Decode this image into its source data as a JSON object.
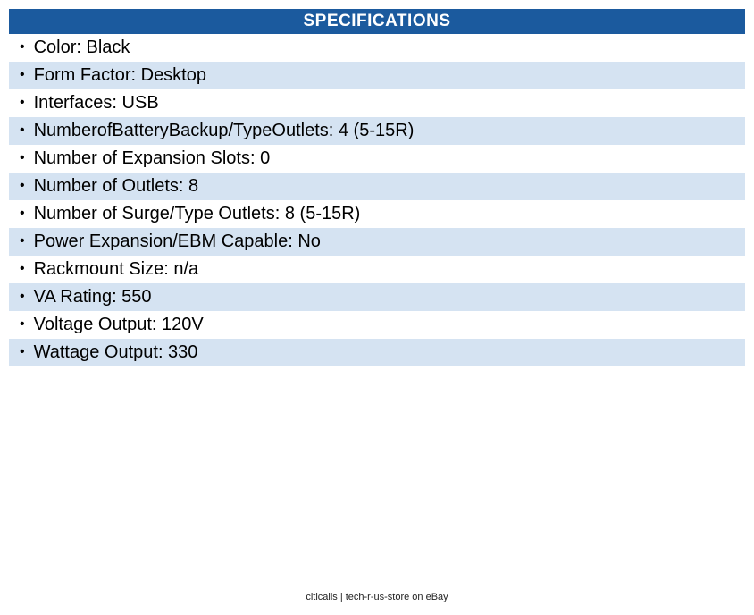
{
  "colors": {
    "header_bg": "#1b5a9e",
    "row_alt_bg": "#d5e3f2",
    "header_text": "#ffffff",
    "row_text": "#000000"
  },
  "table": {
    "title": "SPECIFICATIONS",
    "bullet_glyph": "•",
    "rows": [
      "Color: Black",
      "Form Factor: Desktop",
      "Interfaces: USB",
      "NumberofBatteryBackup/TypeOutlets: 4 (5-15R)",
      "Number of Expansion Slots: 0",
      "Number of Outlets: 8",
      "Number of Surge/Type Outlets: 8 (5-15R)",
      "Power Expansion/EBM Capable: No",
      "Rackmount Size: n/a",
      "VA Rating: 550",
      "Voltage Output: 120V",
      "Wattage Output: 330"
    ]
  },
  "footer": {
    "text": "citicalls | tech-r-us-store on eBay"
  }
}
